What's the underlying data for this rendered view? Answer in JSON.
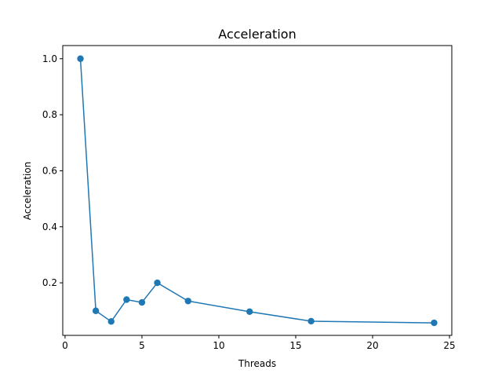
{
  "chart_data": {
    "type": "line",
    "title": "Acceleration",
    "xlabel": "Threads",
    "ylabel": "Acceleration",
    "xlim": [
      -0.15,
      25.15
    ],
    "ylim": [
      0.0124,
      1.047
    ],
    "xticks": [
      0,
      5,
      10,
      15,
      20,
      25
    ],
    "yticks": [
      0.2,
      0.4,
      0.6,
      0.8,
      1.0
    ],
    "xtick_labels": [
      "0",
      "5",
      "10",
      "15",
      "20",
      "25"
    ],
    "ytick_labels": [
      "0.2",
      "0.4",
      "0.6",
      "0.8",
      "1.0"
    ],
    "grid": false,
    "series": [
      {
        "color": "#1f77b4",
        "marker": "circle",
        "x": [
          1,
          2,
          3,
          4,
          5,
          6,
          8,
          12,
          16,
          24
        ],
        "y": [
          1.0,
          0.1,
          0.062,
          0.14,
          0.13,
          0.2,
          0.135,
          0.097,
          0.063,
          0.057
        ]
      }
    ]
  }
}
